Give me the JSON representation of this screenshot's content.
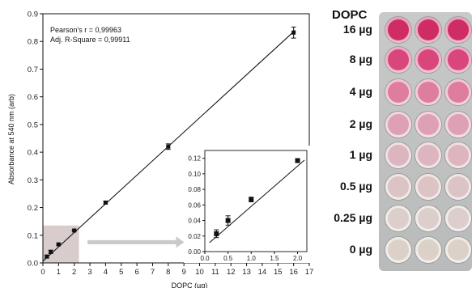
{
  "chart_data": {
    "type": "scatter",
    "xlabel": "DOPC (µg)",
    "ylabel": "Absorbance at 540 nm (arb)",
    "xlim": [
      0,
      17
    ],
    "ylim": [
      0,
      0.9
    ],
    "xticks": [
      0,
      1,
      2,
      3,
      4,
      5,
      6,
      7,
      8,
      9,
      10,
      11,
      12,
      13,
      14,
      15,
      16,
      17
    ],
    "yticks": [
      0,
      0.1,
      0.2,
      0.3,
      0.4,
      0.5,
      0.6,
      0.7,
      0.8,
      0.9
    ],
    "annotations": [
      "Pearson's r = 0,99963",
      "Adj. R-Square = 0,99911"
    ],
    "series": [
      {
        "x": [
          0.25,
          0.5,
          1,
          2,
          4,
          8,
          16
        ],
        "y": [
          0.023,
          0.04,
          0.067,
          0.117,
          0.218,
          0.42,
          0.832
        ],
        "err": [
          0.005,
          0.006,
          0.003,
          0.002,
          0.005,
          0.01,
          0.02
        ]
      }
    ],
    "fit": {
      "slope": 0.0518,
      "intercept": 0.0063
    },
    "inset": {
      "type": "scatter",
      "xlim": [
        0,
        2.2
      ],
      "ylim": [
        0,
        0.13
      ],
      "xticks": [
        0.0,
        0.5,
        1.0,
        1.5,
        2.0
      ],
      "yticks": [
        0.0,
        0.02,
        0.04,
        0.06,
        0.08,
        0.1,
        0.12
      ],
      "x": [
        0.25,
        0.5,
        1,
        2
      ],
      "y": [
        0.023,
        0.04,
        0.067,
        0.117
      ],
      "err": [
        0.005,
        0.006,
        0.003,
        0.002
      ]
    }
  },
  "plate": {
    "title": "DOPC",
    "labels": [
      "16 µg",
      "8 µg",
      "4 µg",
      "2 µg",
      "1 µg",
      "0.5 µg",
      "0.25 µg",
      "0 µg"
    ],
    "colors": [
      "#cf2c66",
      "#d9467c",
      "#de7d9e",
      "#dea0b5",
      "#dcb5bf",
      "#dcc3c4",
      "#dccfcb",
      "#dcd1c8"
    ]
  },
  "colors": {
    "axis": "#111111",
    "fit": "#111111",
    "highlight": "#d9cccc",
    "arrow": "#c9c9c9"
  }
}
